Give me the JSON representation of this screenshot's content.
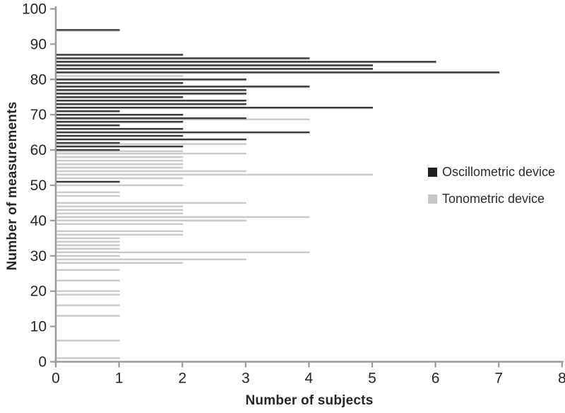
{
  "chart_data": {
    "type": "bar",
    "orientation": "horizontal",
    "title": "",
    "xlabel": "Number of subjects",
    "ylabel": "Number of measurements",
    "xlim": [
      0,
      8
    ],
    "ylim": [
      0,
      100
    ],
    "x_ticks": [
      0,
      1,
      2,
      3,
      4,
      5,
      6,
      7,
      8
    ],
    "y_ticks": [
      0,
      10,
      20,
      30,
      40,
      50,
      60,
      70,
      80,
      90,
      100
    ],
    "grid": false,
    "legend_position": "middle-right",
    "axis_color": "#9a9a9a",
    "tick_label_color": "#262626",
    "series": [
      {
        "name": "Oscillometric device",
        "color": "#3a3a3a",
        "edge_color": "#c9c9c9",
        "points": [
          {
            "measurements": 94,
            "subjects": 1
          },
          {
            "measurements": 87,
            "subjects": 2
          },
          {
            "measurements": 86,
            "subjects": 4
          },
          {
            "measurements": 85,
            "subjects": 6
          },
          {
            "measurements": 84,
            "subjects": 5
          },
          {
            "measurements": 83,
            "subjects": 5
          },
          {
            "measurements": 82,
            "subjects": 7
          },
          {
            "measurements": 80,
            "subjects": 3
          },
          {
            "measurements": 79,
            "subjects": 2
          },
          {
            "measurements": 78,
            "subjects": 4
          },
          {
            "measurements": 77,
            "subjects": 3
          },
          {
            "measurements": 76,
            "subjects": 3
          },
          {
            "measurements": 75,
            "subjects": 2
          },
          {
            "measurements": 74,
            "subjects": 3
          },
          {
            "measurements": 73,
            "subjects": 3
          },
          {
            "measurements": 72,
            "subjects": 5
          },
          {
            "measurements": 71,
            "subjects": 1
          },
          {
            "measurements": 70,
            "subjects": 2
          },
          {
            "measurements": 69,
            "subjects": 3
          },
          {
            "measurements": 68,
            "subjects": 2
          },
          {
            "measurements": 67,
            "subjects": 1
          },
          {
            "measurements": 66,
            "subjects": 2
          },
          {
            "measurements": 65,
            "subjects": 4
          },
          {
            "measurements": 64,
            "subjects": 2
          },
          {
            "measurements": 63,
            "subjects": 3
          },
          {
            "measurements": 62,
            "subjects": 1
          },
          {
            "measurements": 61,
            "subjects": 2
          },
          {
            "measurements": 60,
            "subjects": 1
          },
          {
            "measurements": 51,
            "subjects": 1
          }
        ]
      },
      {
        "name": "Tonometric device",
        "color": "#c9c9c9",
        "edge_color": "#e4e4e4",
        "points": [
          {
            "measurements": 81,
            "subjects": 2
          },
          {
            "measurements": 69,
            "subjects": 4
          },
          {
            "measurements": 62,
            "subjects": 3
          },
          {
            "measurements": 60,
            "subjects": 2
          },
          {
            "measurements": 59,
            "subjects": 3
          },
          {
            "measurements": 58,
            "subjects": 2
          },
          {
            "measurements": 57,
            "subjects": 2
          },
          {
            "measurements": 56,
            "subjects": 2
          },
          {
            "measurements": 55,
            "subjects": 2
          },
          {
            "measurements": 54,
            "subjects": 3
          },
          {
            "measurements": 53,
            "subjects": 5
          },
          {
            "measurements": 52,
            "subjects": 2
          },
          {
            "measurements": 50,
            "subjects": 2
          },
          {
            "measurements": 48,
            "subjects": 1
          },
          {
            "measurements": 47,
            "subjects": 1
          },
          {
            "measurements": 45,
            "subjects": 3
          },
          {
            "measurements": 44,
            "subjects": 2
          },
          {
            "measurements": 43,
            "subjects": 2
          },
          {
            "measurements": 42,
            "subjects": 2
          },
          {
            "measurements": 41,
            "subjects": 4
          },
          {
            "measurements": 40,
            "subjects": 3
          },
          {
            "measurements": 39,
            "subjects": 2
          },
          {
            "measurements": 37,
            "subjects": 2
          },
          {
            "measurements": 36,
            "subjects": 2
          },
          {
            "measurements": 35,
            "subjects": 1
          },
          {
            "measurements": 34,
            "subjects": 1
          },
          {
            "measurements": 33,
            "subjects": 1
          },
          {
            "measurements": 32,
            "subjects": 1
          },
          {
            "measurements": 31,
            "subjects": 4
          },
          {
            "measurements": 30,
            "subjects": 1
          },
          {
            "measurements": 29,
            "subjects": 3
          },
          {
            "measurements": 28,
            "subjects": 2
          },
          {
            "measurements": 26,
            "subjects": 1
          },
          {
            "measurements": 23,
            "subjects": 1
          },
          {
            "measurements": 20,
            "subjects": 1
          },
          {
            "measurements": 19,
            "subjects": 1
          },
          {
            "measurements": 16,
            "subjects": 1
          },
          {
            "measurements": 13,
            "subjects": 1
          },
          {
            "measurements": 6,
            "subjects": 1
          },
          {
            "measurements": 1,
            "subjects": 1
          }
        ]
      }
    ],
    "legend": [
      {
        "label": "Oscillometric device",
        "color": "#1f1f1f"
      },
      {
        "label": "Tonometric device",
        "color": "#c6c6c6"
      }
    ]
  }
}
